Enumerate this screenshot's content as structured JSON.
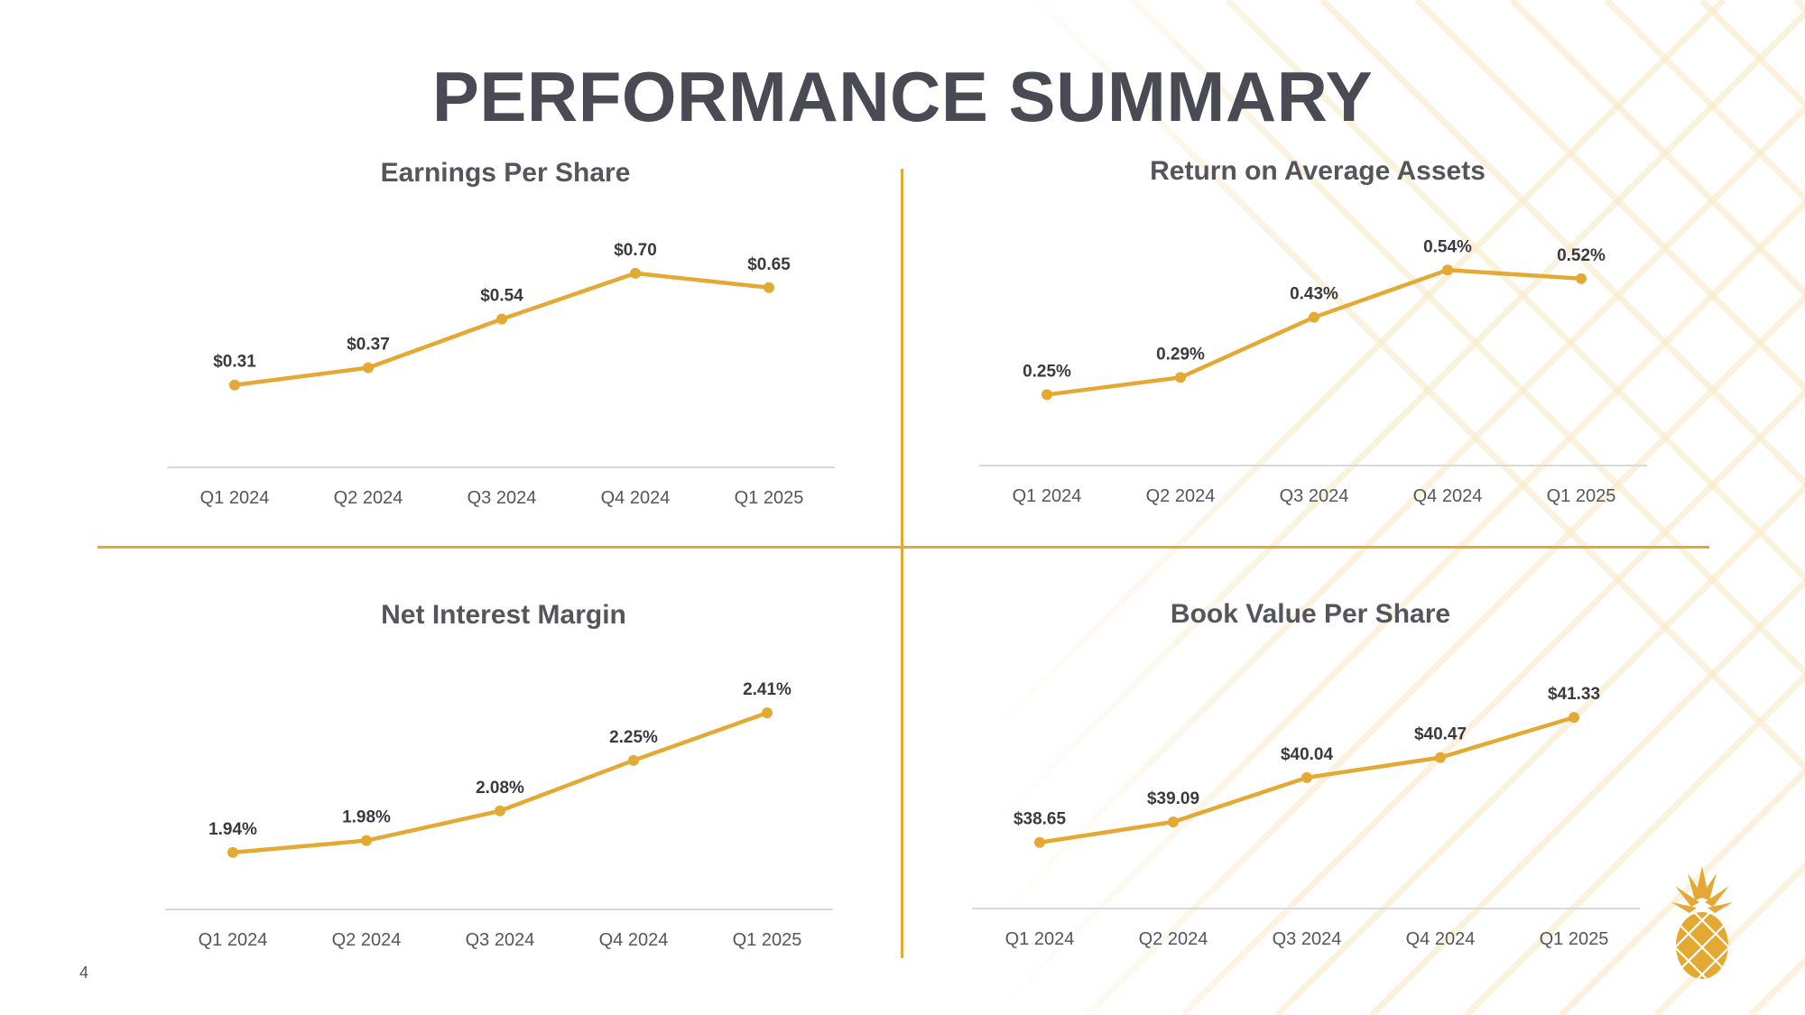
{
  "page": {
    "title": "PERFORMANCE SUMMARY",
    "page_number": "4"
  },
  "colors": {
    "accent": "#e3a933",
    "title": "#4a4a55",
    "label": "#3a3a40",
    "tick": "#55565c",
    "axis": "#d9d9d9"
  },
  "chart_data": [
    {
      "type": "line",
      "title": "Earnings Per Share",
      "categories": [
        "Q1 2024",
        "Q2 2024",
        "Q3 2024",
        "Q4 2024",
        "Q1 2025"
      ],
      "values": [
        0.31,
        0.37,
        0.54,
        0.7,
        0.65
      ],
      "labels": [
        "$0.31",
        "$0.37",
        "$0.54",
        "$0.70",
        "$0.65"
      ],
      "ylim": [
        0.18,
        0.75
      ],
      "xlabel": "",
      "ylabel": "",
      "grid": false
    },
    {
      "type": "line",
      "title": "Return on Average Assets",
      "categories": [
        "Q1 2024",
        "Q2 2024",
        "Q3 2024",
        "Q4 2024",
        "Q1 2025"
      ],
      "values": [
        0.25,
        0.29,
        0.43,
        0.54,
        0.52
      ],
      "labels": [
        "0.25%",
        "0.29%",
        "0.43%",
        "0.54%",
        "0.52%"
      ],
      "ylim": [
        0.19,
        0.57
      ],
      "xlabel": "",
      "ylabel": "",
      "grid": false
    },
    {
      "type": "line",
      "title": "Net Interest Margin",
      "categories": [
        "Q1 2024",
        "Q2 2024",
        "Q3 2024",
        "Q4 2024",
        "Q1 2025"
      ],
      "values": [
        1.94,
        1.98,
        2.08,
        2.25,
        2.41
      ],
      "labels": [
        "1.94%",
        "1.98%",
        "2.08%",
        "2.25%",
        "2.41%"
      ],
      "ylim": [
        1.9,
        2.45
      ],
      "xlabel": "",
      "ylabel": "",
      "grid": false
    },
    {
      "type": "line",
      "title": "Book Value Per Share",
      "categories": [
        "Q1 2024",
        "Q2 2024",
        "Q3 2024",
        "Q4 2024",
        "Q1 2025"
      ],
      "values": [
        38.65,
        39.09,
        40.04,
        40.47,
        41.33
      ],
      "labels": [
        "$38.65",
        "$39.09",
        "$40.04",
        "$40.47",
        "$41.33"
      ],
      "ylim": [
        38.2,
        41.7
      ],
      "xlabel": "",
      "ylabel": "",
      "grid": false
    }
  ]
}
